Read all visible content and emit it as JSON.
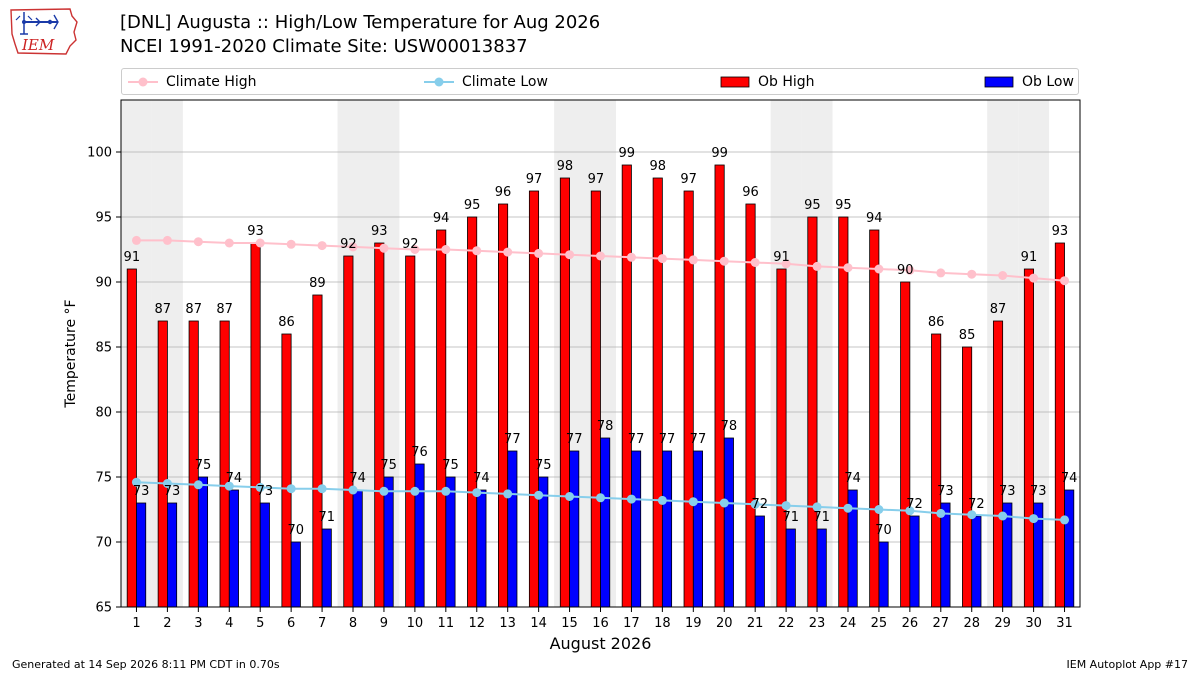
{
  "header": {
    "title_line1": "[DNL] Augusta :: High/Low Temperature for Aug 2026",
    "title_line2": "NCEI 1991-2020 Climate Site: USW00013837",
    "logo_text": "IEM"
  },
  "footer": {
    "generated": "Generated at 14 Sep 2026 8:11 PM CDT in 0.70s",
    "app": "IEM Autoplot App #17"
  },
  "legend": {
    "climate_high": "Climate High",
    "climate_low": "Climate Low",
    "ob_high": "Ob High",
    "ob_low": "Ob Low"
  },
  "colors": {
    "ob_high": "#ff0000",
    "ob_low": "#0000ff",
    "climate_high": "#ffc0cb",
    "climate_low": "#87ceeb",
    "weekend_shade": "#eeeeee",
    "grid": "#b0b0b0"
  },
  "chart_data": {
    "type": "bar",
    "xlabel": "August 2026",
    "ylabel": "Temperature °F",
    "ylim": [
      65,
      104
    ],
    "yticks": [
      65,
      70,
      75,
      80,
      85,
      90,
      95,
      100
    ],
    "grid": "horizontal",
    "legend_placement": "top",
    "categories": [
      1,
      2,
      3,
      4,
      5,
      6,
      7,
      8,
      9,
      10,
      11,
      12,
      13,
      14,
      15,
      16,
      17,
      18,
      19,
      20,
      21,
      22,
      23,
      24,
      25,
      26,
      27,
      28,
      29,
      30,
      31
    ],
    "shaded_days": [
      1,
      2,
      8,
      9,
      15,
      16,
      22,
      23,
      29,
      30
    ],
    "series": [
      {
        "name": "Ob High",
        "kind": "bar",
        "values": [
          91,
          87,
          87,
          87,
          93,
          86,
          89,
          92,
          93,
          92,
          94,
          95,
          96,
          97,
          98,
          97,
          99,
          98,
          97,
          99,
          96,
          91,
          95,
          95,
          94,
          90,
          86,
          85,
          87,
          91,
          93
        ]
      },
      {
        "name": "Ob Low",
        "kind": "bar",
        "values": [
          73,
          73,
          75,
          74,
          73,
          70,
          71,
          74,
          75,
          76,
          75,
          74,
          77,
          75,
          77,
          78,
          77,
          77,
          77,
          78,
          72,
          71,
          71,
          74,
          70,
          72,
          73,
          72,
          73,
          73,
          74
        ]
      },
      {
        "name": "Climate High",
        "kind": "line",
        "values": [
          93.2,
          93.2,
          93.1,
          93.0,
          93.0,
          92.9,
          92.8,
          92.7,
          92.6,
          92.5,
          92.5,
          92.4,
          92.3,
          92.2,
          92.1,
          92.0,
          91.9,
          91.8,
          91.7,
          91.6,
          91.5,
          91.4,
          91.2,
          91.1,
          91.0,
          90.9,
          90.7,
          90.6,
          90.5,
          90.3,
          90.1
        ]
      },
      {
        "name": "Climate Low",
        "kind": "line",
        "values": [
          74.6,
          74.5,
          74.4,
          74.3,
          74.2,
          74.1,
          74.1,
          74.0,
          73.9,
          73.9,
          73.9,
          73.8,
          73.7,
          73.6,
          73.5,
          73.4,
          73.3,
          73.2,
          73.1,
          73.0,
          72.9,
          72.8,
          72.7,
          72.6,
          72.5,
          72.4,
          72.2,
          72.1,
          72.0,
          71.8,
          71.7
        ]
      }
    ]
  }
}
